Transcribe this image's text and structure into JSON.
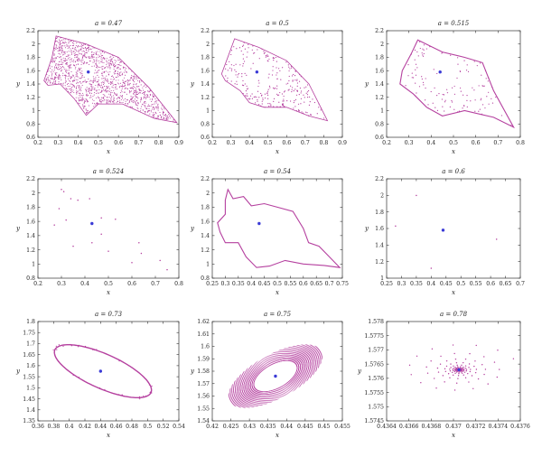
{
  "colors": {
    "orbit": "#b5409f",
    "fixed_point": "#3b3bd6"
  },
  "chart_data": [
    {
      "type": "scatter",
      "title": "a = 0.47",
      "xlabel": "x",
      "ylabel": "y",
      "xlim": [
        0.2,
        0.9
      ],
      "ylim": [
        0.6,
        2.2
      ],
      "xticks": [
        "0.2",
        "0.3",
        "0.4",
        "0.5",
        "0.6",
        "0.7",
        "0.8",
        "0.9"
      ],
      "yticks": [
        "0.6",
        "0.8",
        "1",
        "1.2",
        "1.4",
        "1.6",
        "1.8",
        "2",
        "2.2"
      ],
      "fixed_point": [
        0.45,
        1.58
      ],
      "shape": "dense",
      "outline": [
        [
          0.29,
          2.12
        ],
        [
          0.44,
          2.0
        ],
        [
          0.6,
          1.8
        ],
        [
          0.75,
          1.35
        ],
        [
          0.89,
          0.82
        ],
        [
          0.78,
          0.88
        ],
        [
          0.62,
          1.1
        ],
        [
          0.5,
          1.1
        ],
        [
          0.44,
          0.93
        ],
        [
          0.38,
          1.18
        ],
        [
          0.31,
          1.4
        ],
        [
          0.25,
          1.38
        ],
        [
          0.23,
          1.45
        ],
        [
          0.27,
          1.8
        ]
      ]
    },
    {
      "type": "scatter",
      "title": "a = 0.5",
      "xlabel": "x",
      "ylabel": "y",
      "xlim": [
        0.2,
        0.9
      ],
      "ylim": [
        0.6,
        2.2
      ],
      "xticks": [
        "0.2",
        "0.3",
        "0.4",
        "0.5",
        "0.6",
        "0.7",
        "0.8",
        "0.9"
      ],
      "yticks": [
        "0.6",
        "0.8",
        "1",
        "1.2",
        "1.4",
        "1.6",
        "1.8",
        "2",
        "2.2"
      ],
      "fixed_point": [
        0.44,
        1.58
      ],
      "shape": "sparse",
      "outline": [
        [
          0.32,
          2.08
        ],
        [
          0.45,
          1.95
        ],
        [
          0.6,
          1.75
        ],
        [
          0.72,
          1.4
        ],
        [
          0.82,
          0.85
        ],
        [
          0.72,
          0.92
        ],
        [
          0.6,
          1.05
        ],
        [
          0.48,
          1.05
        ],
        [
          0.4,
          1.12
        ],
        [
          0.35,
          1.3
        ],
        [
          0.27,
          1.45
        ],
        [
          0.25,
          1.55
        ],
        [
          0.29,
          1.85
        ]
      ]
    },
    {
      "type": "scatter",
      "title": "a = 0.515",
      "xlabel": "x",
      "ylabel": "y",
      "xlim": [
        0.2,
        0.8
      ],
      "ylim": [
        0.6,
        2.2
      ],
      "xticks": [
        "0.2",
        "0.3",
        "0.4",
        "0.5",
        "0.6",
        "0.7",
        "0.8"
      ],
      "yticks": [
        "0.6",
        "0.8",
        "1",
        "1.2",
        "1.4",
        "1.6",
        "1.8",
        "2",
        "2.2"
      ],
      "fixed_point": [
        0.44,
        1.58
      ],
      "shape": "curve",
      "outline": [
        [
          0.34,
          2.06
        ],
        [
          0.45,
          1.88
        ],
        [
          0.55,
          1.8
        ],
        [
          0.63,
          1.72
        ],
        [
          0.68,
          1.3
        ],
        [
          0.77,
          0.75
        ],
        [
          0.68,
          0.9
        ],
        [
          0.55,
          1.0
        ],
        [
          0.45,
          0.92
        ],
        [
          0.38,
          1.05
        ],
        [
          0.32,
          1.25
        ],
        [
          0.26,
          1.4
        ],
        [
          0.27,
          1.6
        ],
        [
          0.31,
          1.85
        ]
      ]
    },
    {
      "type": "scatter",
      "title": "a = 0.524",
      "xlabel": "x",
      "ylabel": "y",
      "xlim": [
        0.2,
        0.8
      ],
      "ylim": [
        0.8,
        2.2
      ],
      "xticks": [
        "0.2",
        "0.3",
        "0.4",
        "0.5",
        "0.6",
        "0.7",
        "0.8"
      ],
      "yticks": [
        "0.8",
        "1",
        "1.2",
        "1.4",
        "1.6",
        "1.8",
        "2",
        "2.2"
      ],
      "fixed_point": [
        0.43,
        1.57
      ],
      "shape": "points",
      "points": [
        [
          0.3,
          2.05
        ],
        [
          0.31,
          2.02
        ],
        [
          0.34,
          1.92
        ],
        [
          0.29,
          1.78
        ],
        [
          0.32,
          1.62
        ],
        [
          0.27,
          1.55
        ],
        [
          0.37,
          1.9
        ],
        [
          0.42,
          1.92
        ],
        [
          0.47,
          1.65
        ],
        [
          0.53,
          1.63
        ],
        [
          0.35,
          1.25
        ],
        [
          0.43,
          1.3
        ],
        [
          0.5,
          1.18
        ],
        [
          0.63,
          1.3
        ],
        [
          0.64,
          1.15
        ],
        [
          0.6,
          1.02
        ],
        [
          0.72,
          1.05
        ],
        [
          0.75,
          0.92
        ],
        [
          0.47,
          1.42
        ]
      ]
    },
    {
      "type": "scatter",
      "title": "a = 0.54",
      "xlabel": "x",
      "ylabel": "y",
      "xlim": [
        0.25,
        0.75
      ],
      "ylim": [
        0.8,
        2.2
      ],
      "xticks": [
        "0.25",
        "0.3",
        "0.35",
        "0.4",
        "0.45",
        "0.5",
        "0.55",
        "0.6",
        "0.65",
        "0.7",
        "0.75"
      ],
      "yticks": [
        "0.8",
        "1",
        "1.2",
        "1.4",
        "1.6",
        "1.8",
        "2",
        "2.2"
      ],
      "fixed_point": [
        0.43,
        1.57
      ],
      "shape": "loop",
      "outline": [
        [
          0.31,
          2.05
        ],
        [
          0.33,
          1.92
        ],
        [
          0.37,
          1.95
        ],
        [
          0.4,
          1.82
        ],
        [
          0.45,
          1.85
        ],
        [
          0.5,
          1.8
        ],
        [
          0.56,
          1.74
        ],
        [
          0.6,
          1.5
        ],
        [
          0.62,
          1.3
        ],
        [
          0.66,
          1.25
        ],
        [
          0.7,
          1.1
        ],
        [
          0.74,
          0.95
        ],
        [
          0.68,
          0.98
        ],
        [
          0.6,
          1.0
        ],
        [
          0.53,
          1.05
        ],
        [
          0.47,
          0.97
        ],
        [
          0.42,
          0.95
        ],
        [
          0.38,
          1.1
        ],
        [
          0.35,
          1.3
        ],
        [
          0.3,
          1.3
        ],
        [
          0.28,
          1.45
        ],
        [
          0.27,
          1.58
        ],
        [
          0.3,
          1.7
        ],
        [
          0.3,
          1.9
        ]
      ]
    },
    {
      "type": "scatter",
      "title": "a = 0.6",
      "xlabel": "x",
      "ylabel": "y",
      "xlim": [
        0.25,
        0.7
      ],
      "ylim": [
        1.0,
        2.2
      ],
      "xticks": [
        "0.25",
        "0.3",
        "0.35",
        "0.4",
        "0.45",
        "0.5",
        "0.55",
        "0.6",
        "0.65",
        "0.7"
      ],
      "yticks": [
        "1",
        "1.2",
        "1.4",
        "1.6",
        "1.8",
        "2",
        "2.2"
      ],
      "fixed_point": [
        0.44,
        1.58
      ],
      "shape": "points",
      "points": [
        [
          0.28,
          1.63
        ],
        [
          0.35,
          2.0
        ],
        [
          0.4,
          1.12
        ],
        [
          0.62,
          1.47
        ]
      ]
    },
    {
      "type": "scatter",
      "title": "a = 0.73",
      "xlabel": "x",
      "ylabel": "y",
      "xlim": [
        0.36,
        0.54
      ],
      "ylim": [
        1.35,
        1.8
      ],
      "xticks": [
        "0.36",
        "0.38",
        "0.4",
        "0.42",
        "0.44",
        "0.46",
        "0.48",
        "0.5",
        "0.52",
        "0.54"
      ],
      "yticks": [
        "1.35",
        "1.4",
        "1.45",
        "1.5",
        "1.55",
        "1.6",
        "1.65",
        "1.7",
        "1.75",
        "1.8"
      ],
      "fixed_point": [
        0.44,
        1.575
      ],
      "shape": "ellipse",
      "ellipse": {
        "cx": 0.443,
        "cy": 1.575,
        "rx": 0.073,
        "ry": 0.13,
        "angle": -35
      }
    },
    {
      "type": "scatter",
      "title": "a = 0.75",
      "xlabel": "x",
      "ylabel": "y",
      "xlim": [
        0.42,
        0.455
      ],
      "ylim": [
        1.54,
        1.62
      ],
      "xticks": [
        "0.42",
        "0.425",
        "0.43",
        "0.435",
        "0.44",
        "0.445",
        "0.45",
        "0.455"
      ],
      "yticks": [
        "1.54",
        "1.55",
        "1.56",
        "1.57",
        "1.58",
        "1.59",
        "1.6",
        "1.61",
        "1.62"
      ],
      "fixed_point": [
        0.437,
        1.576
      ],
      "shape": "torus",
      "ellipse": {
        "cx": 0.437,
        "cy": 1.576,
        "rx": 0.0155,
        "ry": 0.036,
        "angle": -30,
        "inner": 0.42
      }
    },
    {
      "type": "scatter",
      "title": "a = 0.78",
      "xlabel": "x",
      "ylabel": "y",
      "xlim": [
        0.4364,
        0.4376
      ],
      "ylim": [
        1.5745,
        1.578
      ],
      "xticks": [
        "0.4364",
        "0.4366",
        "0.4368",
        "0.437",
        "0.4372",
        "0.4374",
        "0.4376"
      ],
      "yticks": [
        "1.5745",
        "1.575",
        "1.5755",
        "1.576",
        "1.5765",
        "1.577",
        "1.5775",
        "1.578"
      ],
      "fixed_point": [
        0.43705,
        1.5763
      ],
      "shape": "spiral",
      "spiral": {
        "cx": 0.43705,
        "cy": 1.5763,
        "r0x": 0.00055,
        "r0y": 0.0014
      }
    }
  ]
}
